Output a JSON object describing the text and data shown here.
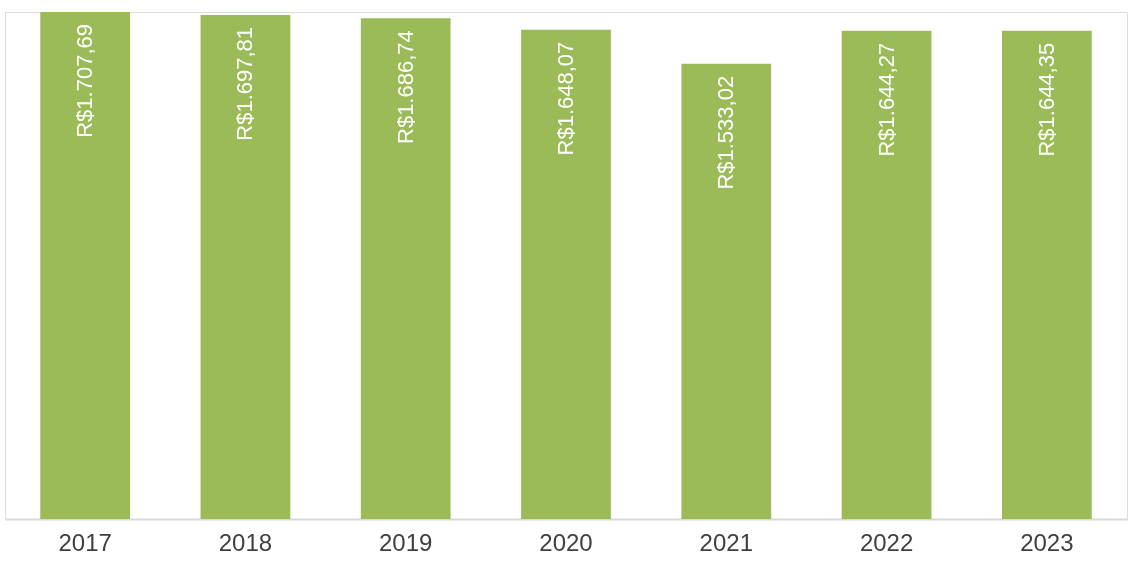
{
  "chart_data": {
    "type": "bar",
    "categories": [
      "2017",
      "2018",
      "2019",
      "2020",
      "2021",
      "2022",
      "2023"
    ],
    "values": [
      1707.69,
      1697.81,
      1686.74,
      1648.07,
      1533.02,
      1644.27,
      1644.35
    ],
    "value_labels": [
      "R$1.707,69",
      "R$1.697,81",
      "R$1.686,74",
      "R$1.648,07",
      "R$1.533,02",
      "R$1.644,27",
      "R$1.644,35"
    ],
    "color": "#9bbb59",
    "grid": false,
    "tick_labels": "x"
  }
}
